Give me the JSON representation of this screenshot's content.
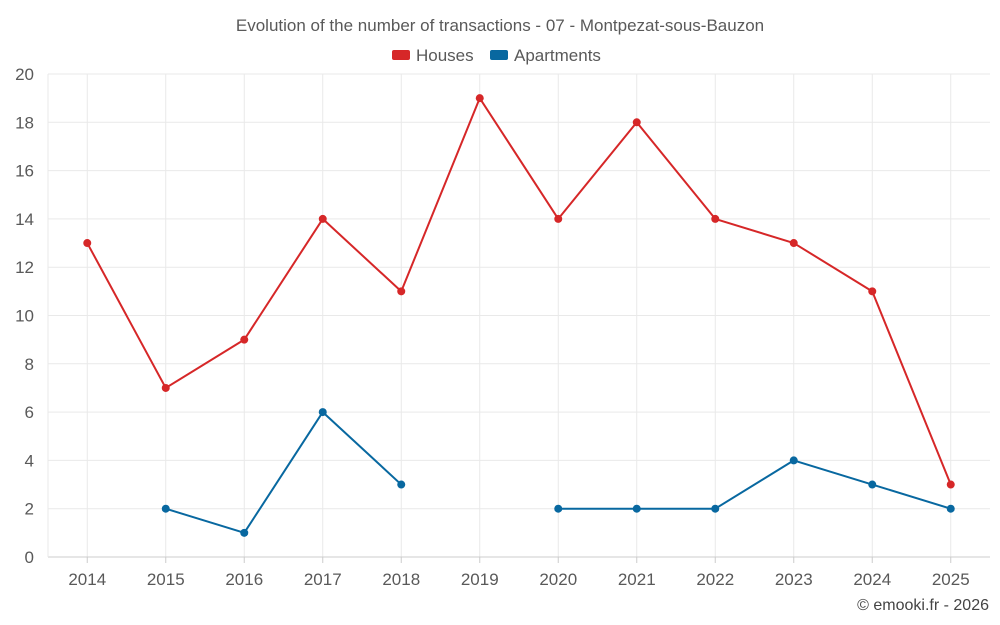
{
  "chart_data": {
    "type": "line",
    "title": "Evolution of the number of transactions - 07 - Montpezat-sous-Bauzon",
    "categories": [
      "2014",
      "2015",
      "2016",
      "2017",
      "2018",
      "2019",
      "2020",
      "2021",
      "2022",
      "2023",
      "2024",
      "2025"
    ],
    "ylim": [
      0,
      20
    ],
    "yticks": [
      0,
      2,
      4,
      6,
      8,
      10,
      12,
      14,
      16,
      18,
      20
    ],
    "grid": true,
    "legend_position": "top-center",
    "series": [
      {
        "name": "Houses",
        "color": "#d62728",
        "values": [
          13,
          7,
          9,
          14,
          11,
          19,
          14,
          18,
          14,
          13,
          11,
          3
        ]
      },
      {
        "name": "Apartments",
        "color": "#0868a0",
        "values": [
          null,
          2,
          1,
          6,
          3,
          null,
          2,
          2,
          2,
          4,
          3,
          2
        ]
      }
    ]
  },
  "credit": "© emooki.fr - 2026"
}
